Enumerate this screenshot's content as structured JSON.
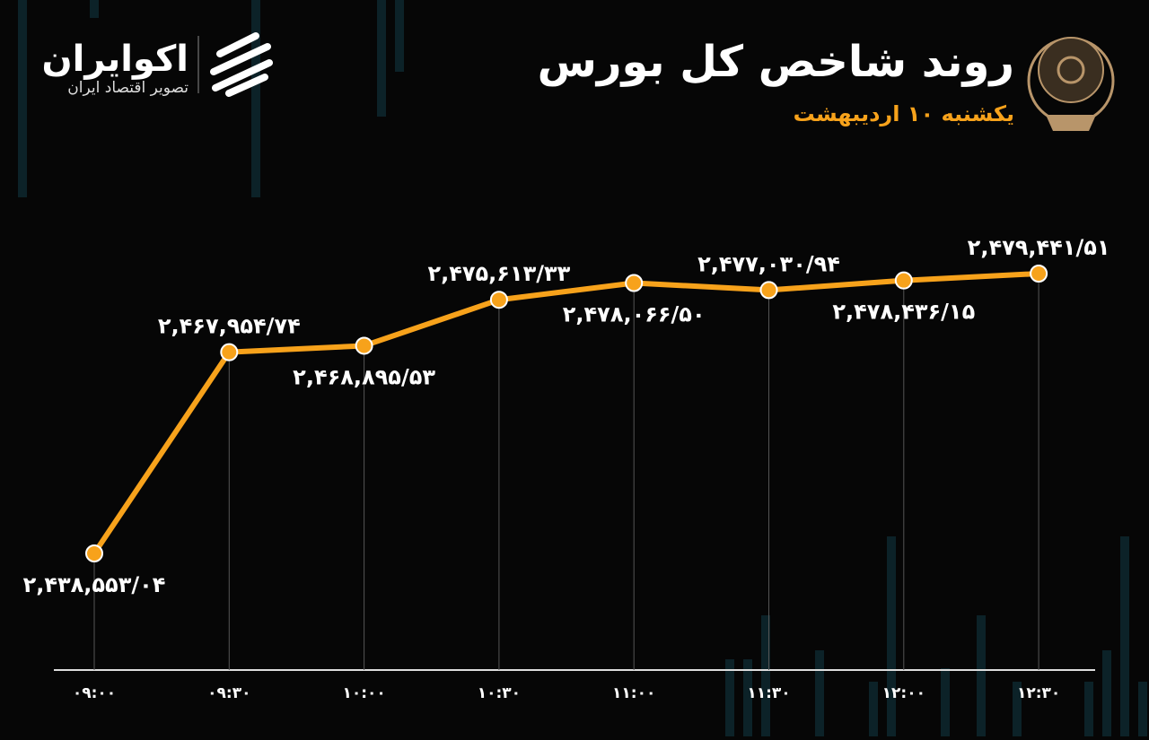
{
  "brand": {
    "name": "اکوایران",
    "tagline": "تصویر اقتصاد ایران"
  },
  "chart_data": {
    "type": "line",
    "title": "روند شاخص کل بورس",
    "subtitle": "یکشنبه ۱۰ اردیبهشت",
    "categories": [
      "۰۹:۰۰",
      "۰۹:۳۰",
      "۱۰:۰۰",
      "۱۰:۳۰",
      "۱۱:۰۰",
      "۱۱:۳۰",
      "۱۲:۰۰",
      "۱۲:۳۰"
    ],
    "series": [
      {
        "color": "#f7a21b",
        "values": [
          2438553.04,
          2467954.74,
          2468895.53,
          2475613.33,
          2478066.5,
          2477030.94,
          2478436.15,
          2479441.51
        ],
        "value_labels": [
          "۲,۴۳۸,۵۵۳/۰۴",
          "۲,۴۶۷,۹۵۴/۷۴",
          "۲,۴۶۸,۸۹۵/۵۳",
          "۲,۴۷۵,۶۱۳/۳۳",
          "۲,۴۷۸,۰۶۶/۵۰",
          "۲,۴۷۷,۰۳۰/۹۴",
          "۲,۴۷۸,۴۳۶/۱۵",
          "۲,۴۷۹,۴۴۱/۵۱"
        ]
      }
    ]
  }
}
